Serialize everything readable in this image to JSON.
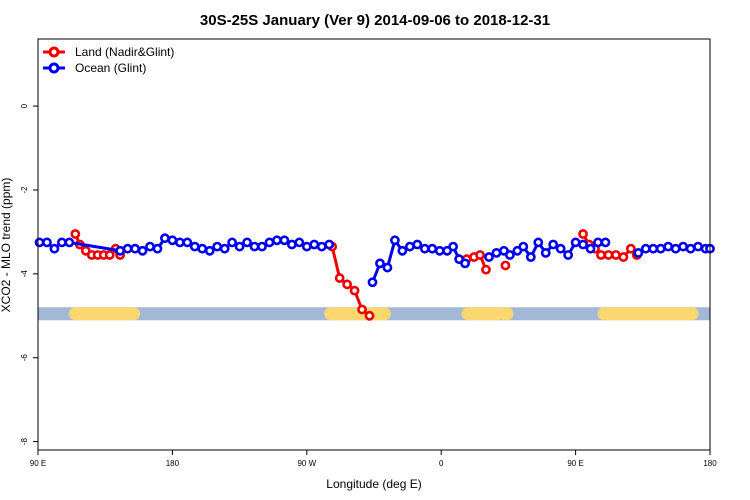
{
  "chart_data": {
    "type": "line",
    "title": "30S-25S January (Ver 9)   2014-09-06 to 2018-12-31",
    "xlabel": "Longitude (deg E)",
    "ylabel": "XCO2 - MLO trend (ppm)",
    "xlim": [
      90,
      540
    ],
    "ylim": [
      -8.2,
      1.6
    ],
    "x_ticks": [
      {
        "value": 90,
        "label": "90 E"
      },
      {
        "value": 180,
        "label": "180"
      },
      {
        "value": 270,
        "label": "90 W"
      },
      {
        "value": 360,
        "label": "0"
      },
      {
        "value": 450,
        "label": "90 E"
      },
      {
        "value": 540,
        "label": "180"
      }
    ],
    "y_ticks": [
      {
        "value": 0,
        "label": "0"
      },
      {
        "value": -2,
        "label": "-2"
      },
      {
        "value": -4,
        "label": "-4"
      },
      {
        "value": -6,
        "label": "-6"
      },
      {
        "value": -8,
        "label": "-8"
      }
    ],
    "legend_position": "top-left",
    "series": [
      {
        "name": "Land (Nadir&Glint)",
        "color": "#ee0000",
        "segments": [
          [
            [
              115,
              -3.05
            ],
            [
              118,
              -3.3
            ],
            [
              122,
              -3.45
            ],
            [
              126,
              -3.55
            ],
            [
              130,
              -3.55
            ],
            [
              134,
              -3.55
            ],
            [
              138,
              -3.55
            ],
            [
              142,
              -3.4
            ],
            [
              145,
              -3.55
            ]
          ],
          [
            [
              287,
              -3.35
            ],
            [
              292,
              -4.1
            ],
            [
              297,
              -4.25
            ],
            [
              302,
              -4.4
            ],
            [
              307,
              -4.85
            ],
            [
              312,
              -5.0
            ]
          ],
          [
            [
              377,
              -3.65
            ],
            [
              382,
              -3.6
            ],
            [
              386,
              -3.55
            ],
            [
              390,
              -3.9
            ]
          ],
          [
            [
              403,
              -3.8
            ]
          ],
          [
            [
              455,
              -3.05
            ],
            [
              459,
              -3.3
            ],
            [
              463,
              -3.4
            ],
            [
              467,
              -3.55
            ],
            [
              472,
              -3.55
            ],
            [
              477,
              -3.55
            ],
            [
              482,
              -3.6
            ],
            [
              487,
              -3.4
            ],
            [
              491,
              -3.55
            ]
          ]
        ]
      },
      {
        "name": "Ocean (Glint)",
        "color": "#0000ee",
        "segments": [
          [
            [
              91,
              -3.25
            ],
            [
              96,
              -3.25
            ],
            [
              101,
              -3.4
            ],
            [
              106,
              -3.25
            ],
            [
              111,
              -3.25
            ],
            [
              145,
              -3.45
            ],
            [
              150,
              -3.4
            ],
            [
              155,
              -3.4
            ],
            [
              160,
              -3.45
            ],
            [
              165,
              -3.35
            ],
            [
              170,
              -3.4
            ],
            [
              175,
              -3.15
            ],
            [
              180,
              -3.2
            ],
            [
              185,
              -3.25
            ],
            [
              190,
              -3.25
            ],
            [
              195,
              -3.35
            ],
            [
              200,
              -3.4
            ],
            [
              205,
              -3.45
            ],
            [
              210,
              -3.35
            ],
            [
              215,
              -3.4
            ],
            [
              220,
              -3.25
            ],
            [
              225,
              -3.35
            ],
            [
              230,
              -3.25
            ],
            [
              235,
              -3.35
            ],
            [
              240,
              -3.35
            ],
            [
              245,
              -3.25
            ],
            [
              250,
              -3.2
            ],
            [
              255,
              -3.2
            ],
            [
              260,
              -3.3
            ],
            [
              265,
              -3.25
            ],
            [
              270,
              -3.35
            ],
            [
              275,
              -3.3
            ],
            [
              280,
              -3.35
            ],
            [
              285,
              -3.3
            ]
          ],
          [
            [
              314,
              -4.2
            ],
            [
              319,
              -3.75
            ],
            [
              324,
              -3.85
            ],
            [
              329,
              -3.2
            ],
            [
              334,
              -3.45
            ],
            [
              339,
              -3.35
            ],
            [
              344,
              -3.3
            ],
            [
              349,
              -3.4
            ],
            [
              354,
              -3.4
            ],
            [
              359,
              -3.45
            ],
            [
              364,
              -3.45
            ],
            [
              368,
              -3.35
            ],
            [
              372,
              -3.65
            ],
            [
              376,
              -3.75
            ]
          ],
          [
            [
              392,
              -3.6
            ],
            [
              397,
              -3.5
            ],
            [
              402,
              -3.45
            ],
            [
              406,
              -3.55
            ],
            [
              411,
              -3.45
            ],
            [
              415,
              -3.35
            ],
            [
              420,
              -3.6
            ],
            [
              425,
              -3.25
            ],
            [
              430,
              -3.5
            ],
            [
              435,
              -3.3
            ],
            [
              440,
              -3.4
            ],
            [
              445,
              -3.55
            ],
            [
              450,
              -3.25
            ],
            [
              455,
              -3.3
            ],
            [
              460,
              -3.4
            ],
            [
              465,
              -3.25
            ],
            [
              470,
              -3.25
            ]
          ],
          [
            [
              492,
              -3.5
            ],
            [
              497,
              -3.4
            ],
            [
              502,
              -3.4
            ],
            [
              507,
              -3.4
            ],
            [
              512,
              -3.35
            ],
            [
              517,
              -3.4
            ],
            [
              522,
              -3.35
            ],
            [
              527,
              -3.4
            ],
            [
              532,
              -3.35
            ],
            [
              537,
              -3.4
            ],
            [
              540,
              -3.4
            ]
          ]
        ]
      }
    ],
    "land_ocean_bar": {
      "y": -4.95,
      "ocean_color": "#a3b8d6",
      "land_color": "#fbd86f",
      "land_ranges": [
        [
          115,
          154
        ],
        [
          286,
          322
        ],
        [
          378,
          398
        ],
        [
          402,
          404
        ],
        [
          469,
          528
        ]
      ]
    }
  }
}
